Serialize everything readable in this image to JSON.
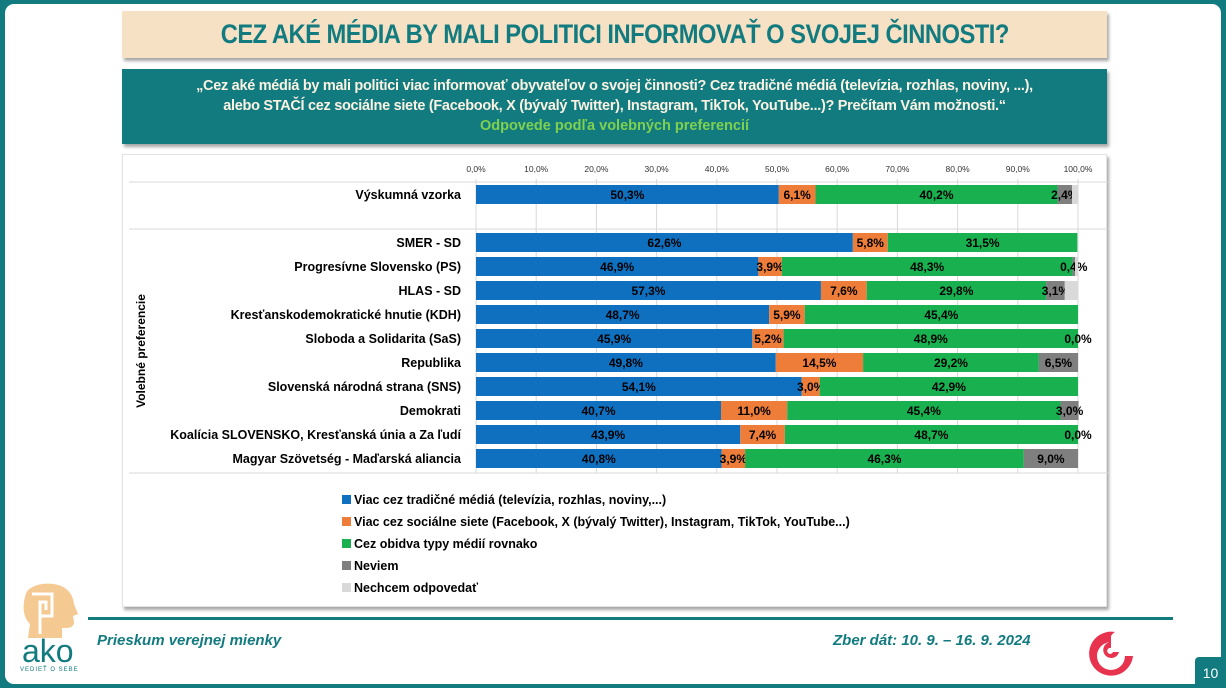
{
  "header": {
    "title": "CEZ AKÉ MÉDIA BY MALI POLITICI INFORMOVAŤ O SVOJEJ ČINNOSTI?",
    "question_line1": "„Cez aké médiá by mali politici viac informovať obyvateľov o svojej činnosti? Cez tradičné médiá (televízia, rozhlas, noviny, ...),",
    "question_line2": "alebo STAČÍ cez sociálne siete (Facebook, X (bývalý Twitter), Instagram, TikTok, YouTube...)? Prečítam Vám možnosti.“",
    "subtitle": "Odpovede podľa volebných preferencií"
  },
  "footer": {
    "left": "Prieskum verejnej mienky",
    "right": "Zber dát: 10. 9. – 16. 9. 2024",
    "page_number": "10",
    "logo_text": "ako",
    "logo_tagline": "VEDIEŤ O SEBE"
  },
  "colors": {
    "teal": "#127b80",
    "beige": "#f6e1c4",
    "green_text": "#7fd14d"
  },
  "chart_data": {
    "type": "bar",
    "orientation": "horizontal-stacked-100",
    "title": "CEZ AKÉ MÉDIA BY MALI POLITICI INFORMOVAŤ O SVOJEJ ČINNOSTI?",
    "xlabel": "",
    "ylabel": "Volebné preferencie",
    "xlim": [
      0,
      100
    ],
    "x_ticks": [
      "0,0%",
      "10,0%",
      "20,0%",
      "30,0%",
      "40,0%",
      "50,0%",
      "60,0%",
      "70,0%",
      "80,0%",
      "90,0%",
      "100,0%"
    ],
    "grid": true,
    "legend_position": "bottom",
    "categories": [
      "Výskumná vzorka",
      "SMER - SD",
      "Progresívne Slovensko (PS)",
      "HLAS - SD",
      "Kresťanskodemokratické hnutie (KDH)",
      "Sloboda a Solidarita (SaS)",
      "Republika",
      "Slovenská národná strana (SNS)",
      "Demokrati",
      "Koalícia SLOVENSKO, Kresťanská únia a Za ľudí",
      "Magyar Szövetség - Maďarská aliancia"
    ],
    "series": [
      {
        "name": "Viac cez tradičné médiá (televízia, rozhlas, noviny,...)",
        "color": "#1070c0",
        "values": [
          50.3,
          62.6,
          46.9,
          57.3,
          48.7,
          45.9,
          49.8,
          54.1,
          40.7,
          43.9,
          40.8
        ],
        "labels": [
          "50,3%",
          "62,6%",
          "46,9%",
          "57,3%",
          "48,7%",
          "45,9%",
          "49,8%",
          "54,1%",
          "40,7%",
          "43,9%",
          "40,8%"
        ]
      },
      {
        "name": "Viac cez sociálne siete (Facebook, X (bývalý Twitter), Instagram, TikTok, YouTube...)",
        "color": "#ee7d3a",
        "values": [
          6.1,
          5.8,
          3.9,
          7.6,
          5.9,
          5.2,
          14.5,
          3.0,
          11.0,
          7.4,
          3.9
        ],
        "labels": [
          "6,1%",
          "5,8%",
          "3,9%",
          "7,6%",
          "5,9%",
          "5,2%",
          "14,5%",
          "3,0%",
          "11,0%",
          "7,4%",
          "3,9%"
        ]
      },
      {
        "name": "Cez obidva typy médií rovnako",
        "color": "#19b050",
        "values": [
          40.2,
          31.5,
          48.3,
          29.8,
          45.4,
          48.9,
          29.2,
          42.9,
          45.4,
          48.7,
          46.3
        ],
        "labels": [
          "40,2%",
          "31,5%",
          "48,3%",
          "29,8%",
          "45,4%",
          "48,9%",
          "29,2%",
          "42,9%",
          "45,4%",
          "48,7%",
          "46,3%"
        ]
      },
      {
        "name": "Neviem",
        "color": "#7f7f7f",
        "values": [
          2.4,
          0,
          0.4,
          3.1,
          0,
          0.0,
          6.5,
          0,
          3.0,
          0.0,
          9.0
        ],
        "labels": [
          "2,4%",
          "",
          "0,4%",
          "3,1%",
          "",
          "0,0%",
          "6,5%",
          "",
          "3,0%",
          "0,0%",
          "9,0%"
        ]
      },
      {
        "name": "Nechcem odpovedať",
        "color": "#d9d9d9",
        "values": [
          1.0,
          0.1,
          0.5,
          2.2,
          0,
          0,
          0,
          0,
          0,
          0,
          0
        ],
        "labels": [
          "",
          "",
          "",
          "",
          "",
          "",
          "",
          "",
          "",
          "",
          ""
        ]
      }
    ]
  }
}
